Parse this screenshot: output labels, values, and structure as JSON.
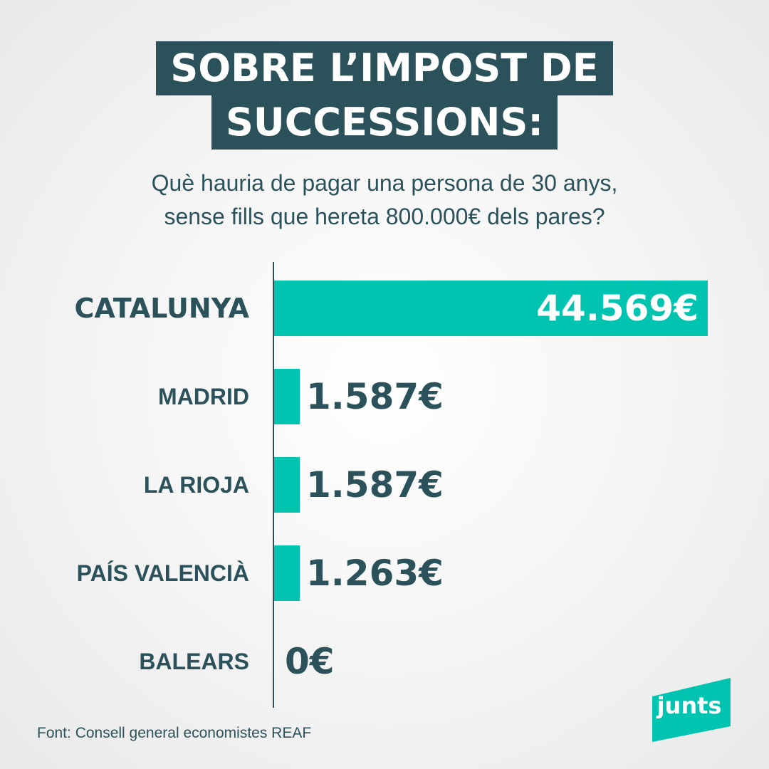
{
  "title": {
    "line1": "SOBRE L’IMPOST DE",
    "line2": "SUCCESSIONS:"
  },
  "subtitle": {
    "line1": "Què hauria de pagar una persona de 30 anys,",
    "line2": "sense fills que hereta 800.000€ dels pares?"
  },
  "source": "Font: Consell general economistes REAF",
  "brand": {
    "logo_text": "junts",
    "accent_color": "#00c4b0",
    "dark_color": "#2b525b"
  },
  "chart_data": {
    "type": "bar",
    "orientation": "horizontal",
    "categories": [
      "CATALUNYA",
      "MADRID",
      "LA RIOJA",
      "PAÍS VALENCIÀ",
      "BALEARS"
    ],
    "values": [
      44569,
      1587,
      1587,
      1263,
      0
    ],
    "value_labels": [
      "44.569€",
      "1.587€",
      "1.587€",
      "1.263€",
      "0€"
    ],
    "highlight": "CATALUNYA",
    "grid": false
  }
}
